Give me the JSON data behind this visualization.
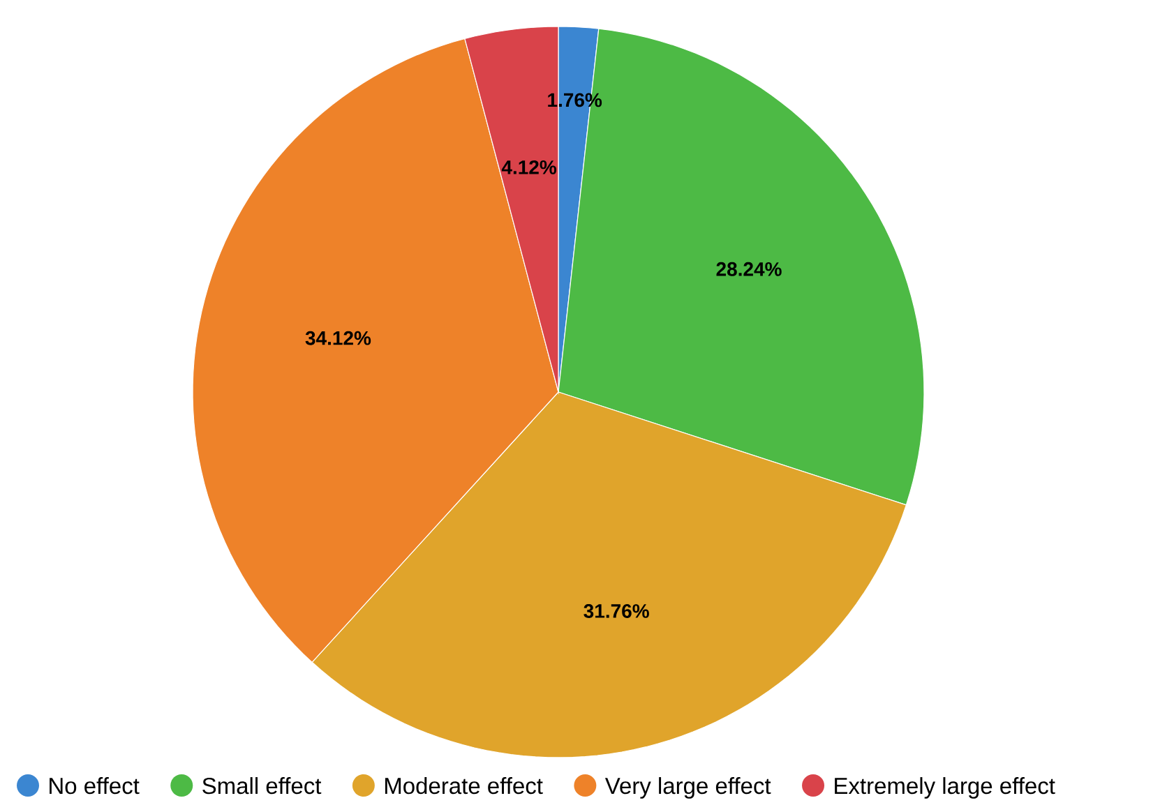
{
  "chart_data": {
    "type": "pie",
    "categories": [
      "No effect",
      "Small effect",
      "Moderate effect",
      "Very large effect",
      "Extremely large effect"
    ],
    "values": [
      1.76,
      28.24,
      31.76,
      34.12,
      4.12
    ],
    "value_labels": [
      "1.76%",
      "28.24%",
      "31.76%",
      "34.12%",
      "4.12%"
    ],
    "colors": [
      "#3b86d1",
      "#4dba45",
      "#e0a42b",
      "#ee8229",
      "#d9434a"
    ],
    "legend": "bottom"
  }
}
